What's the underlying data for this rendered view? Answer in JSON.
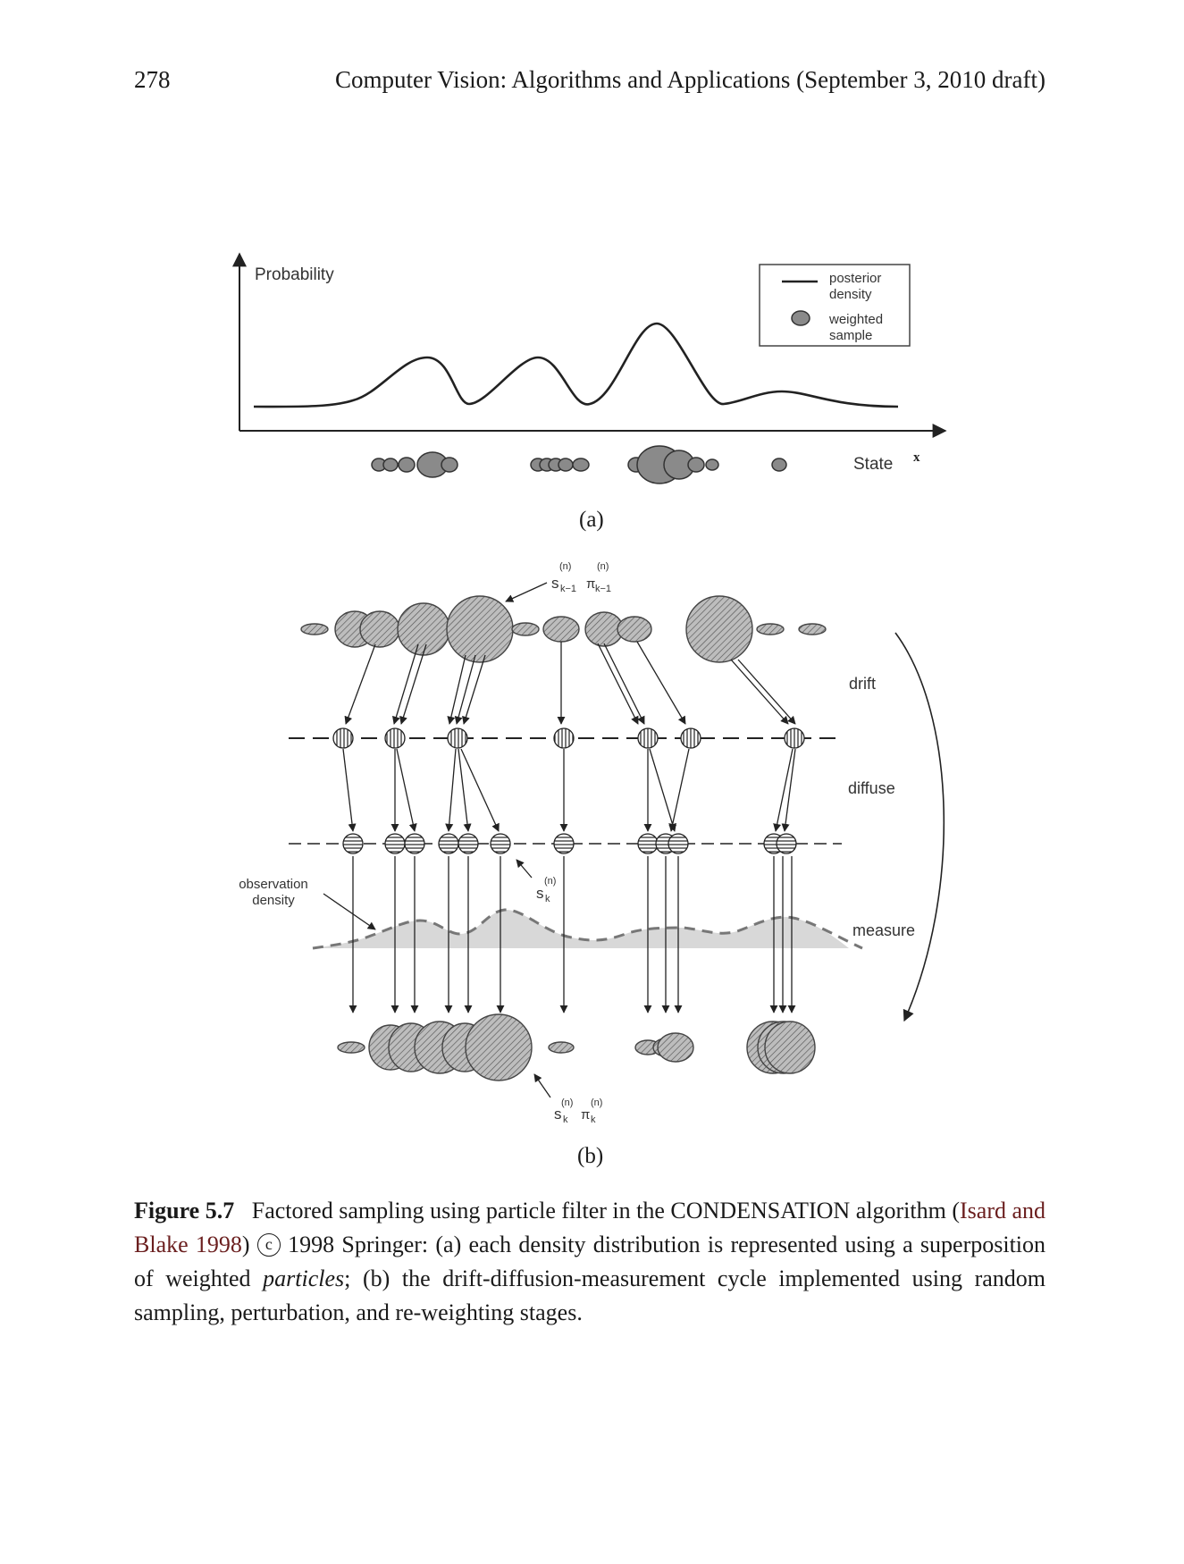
{
  "header": {
    "page_number": "278",
    "running_title": "Computer Vision: Algorithms and Applications (September 3, 2010 draft)"
  },
  "figure_a": {
    "y_axis_label": "Probability",
    "x_axis_label": "State",
    "x_symbol": "x",
    "legend": {
      "line_label_1": "posterior",
      "line_label_2": "density",
      "dot_label_1": "weighted",
      "dot_label_2": "sample"
    },
    "sublabel": "(a)"
  },
  "figure_b": {
    "top_symbol_main": "s",
    "top_symbol_sup": "(n)",
    "top_symbol_sub": "k−1",
    "top_symbol_pi": "π",
    "top_symbol_pi_sup": "(n)",
    "top_symbol_pi_sub": "k−1",
    "label_drift": "drift",
    "label_diffuse": "diffuse",
    "label_measure": "measure",
    "obs_label_1": "observation",
    "obs_label_2": "density",
    "mid_symbol_main": "s",
    "mid_symbol_sup": "(n)",
    "mid_symbol_sub": "k",
    "bottom_symbol_main": "s",
    "bottom_symbol_sup": "(n)",
    "bottom_symbol_sub": "k",
    "bottom_symbol_pi": "π",
    "bottom_symbol_pi_sup": "(n)",
    "bottom_symbol_pi_sub": "k",
    "sublabel": "(b)"
  },
  "caption": {
    "figure_label": "Figure 5.7",
    "text_1": "Factored sampling using particle filter in the CONDENSATION algorithm (",
    "citation": "Isard and Blake 1998",
    "text_2": ")",
    "copyright_symbol": "c",
    "text_3": "1998 Springer: (a) each density distribution is represented using a superposition of weighted",
    "italic_word": "particles",
    "text_4": "; (b) the drift-diffusion-measurement cycle implemented using random sampling, perturbation, and re-weighting stages."
  }
}
